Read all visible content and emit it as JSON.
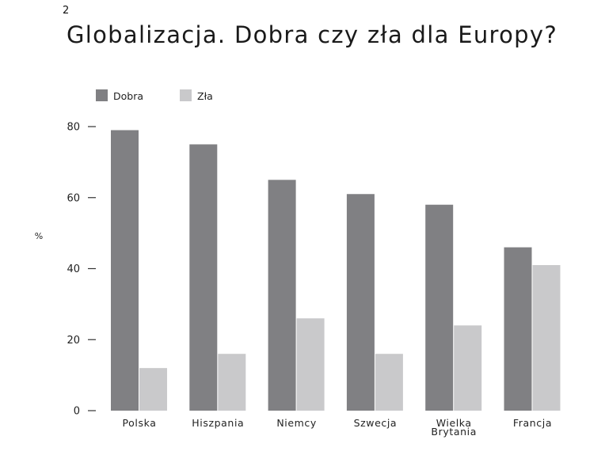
{
  "figure_number": "2",
  "chart_data": {
    "type": "bar",
    "title": "Globalizacja. Dobra czy zła dla Europy?",
    "ylabel": "%",
    "ylim": [
      0,
      80
    ],
    "yticks": [
      0,
      20,
      40,
      60,
      80
    ],
    "grid": false,
    "legend_position": "top-left",
    "categories": [
      [
        "Polska"
      ],
      [
        "Hiszpania"
      ],
      [
        "Niemcy"
      ],
      [
        "Szwecja"
      ],
      [
        "Wielka",
        "Brytania"
      ],
      [
        "Francja"
      ]
    ],
    "series": [
      {
        "name": "Dobra",
        "color": "#808083",
        "values": [
          79,
          75,
          65,
          61,
          58,
          46
        ]
      },
      {
        "name": "Zła",
        "color": "#c9c9cb",
        "values": [
          12,
          16,
          26,
          16,
          24,
          41
        ]
      }
    ]
  }
}
